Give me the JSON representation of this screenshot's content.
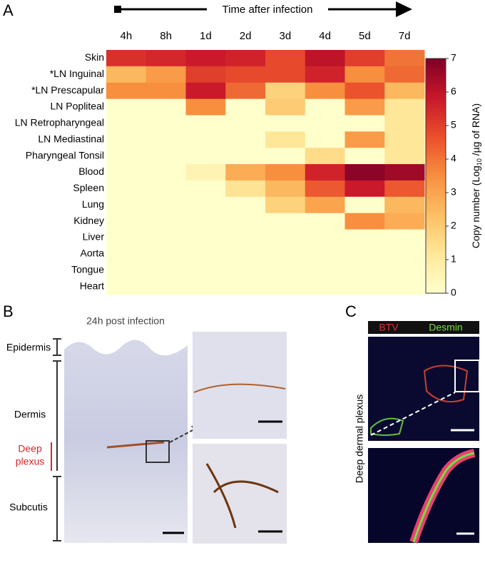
{
  "panel_labels": [
    "A",
    "B",
    "C"
  ],
  "chart_data": {
    "type": "heatmap",
    "xlabel": "Time after infection",
    "x": [
      "4h",
      "8h",
      "1d",
      "2d",
      "3d",
      "4d",
      "5d",
      "7d"
    ],
    "y": [
      "Skin",
      "*LN Inguinal",
      "*LN Prescapular",
      "LN Popliteal",
      "LN Retropharyngeal",
      "LN Mediastinal",
      "Pharyngeal Tonsil",
      "Blood",
      "Spleen",
      "Lung",
      "Kidney",
      "Liver",
      "Aorta",
      "Tongue",
      "Heart"
    ],
    "values": [
      [
        5.3,
        5.5,
        5.8,
        5.6,
        4.8,
        6.0,
        5.0,
        4.0
      ],
      [
        2.5,
        3.2,
        5.0,
        4.8,
        4.8,
        5.6,
        3.5,
        4.2
      ],
      [
        3.5,
        3.5,
        5.8,
        4.2,
        1.8,
        3.5,
        4.6,
        2.5
      ],
      [
        0,
        0,
        3.5,
        0,
        2.0,
        0,
        3.2,
        1.2
      ],
      [
        0,
        0,
        0,
        0,
        0,
        0,
        0,
        1.2
      ],
      [
        0,
        0,
        0,
        0,
        1.2,
        0,
        3.2,
        1.2
      ],
      [
        0,
        0,
        0,
        0,
        0,
        1.5,
        0,
        1.2
      ],
      [
        0,
        0,
        0.6,
        2.8,
        3.5,
        5.6,
        6.8,
        6.5
      ],
      [
        0,
        0,
        0,
        1.3,
        2.5,
        4.5,
        5.8,
        4.5
      ],
      [
        0,
        0,
        0,
        0,
        1.8,
        3.0,
        0,
        2.5
      ],
      [
        0,
        0,
        0,
        0,
        0,
        0,
        3.5,
        2.8
      ],
      [
        0,
        0,
        0,
        0,
        0,
        0,
        0,
        0
      ],
      [
        0,
        0,
        0,
        0,
        0,
        0,
        0,
        0
      ],
      [
        0,
        0,
        0,
        0,
        0,
        0,
        0,
        0
      ],
      [
        0,
        0,
        0,
        0,
        0,
        0,
        0,
        0
      ]
    ],
    "clim": [
      0,
      7
    ],
    "cticks": [
      0,
      1,
      2,
      3,
      4,
      5,
      6,
      7
    ],
    "colorbar_label": [
      "Copy number (Log",
      "10",
      " /µg of RNA)"
    ],
    "colormap": [
      "#ffffcc",
      "#fee89a",
      "#fdbf63",
      "#f78f3f",
      "#ea4f2c",
      "#c8172a",
      "#7f0026"
    ]
  },
  "panel_b": {
    "title": "24h post infection",
    "epidermis": "Epidermis",
    "dermis": "Dermis",
    "deep_plexus": [
      "Deep",
      "plexus"
    ],
    "subcutis": "Subcutis"
  },
  "panel_c": {
    "btv": "BTV",
    "desmin": "Desmin",
    "side_label": "Deep dermal plexus"
  }
}
